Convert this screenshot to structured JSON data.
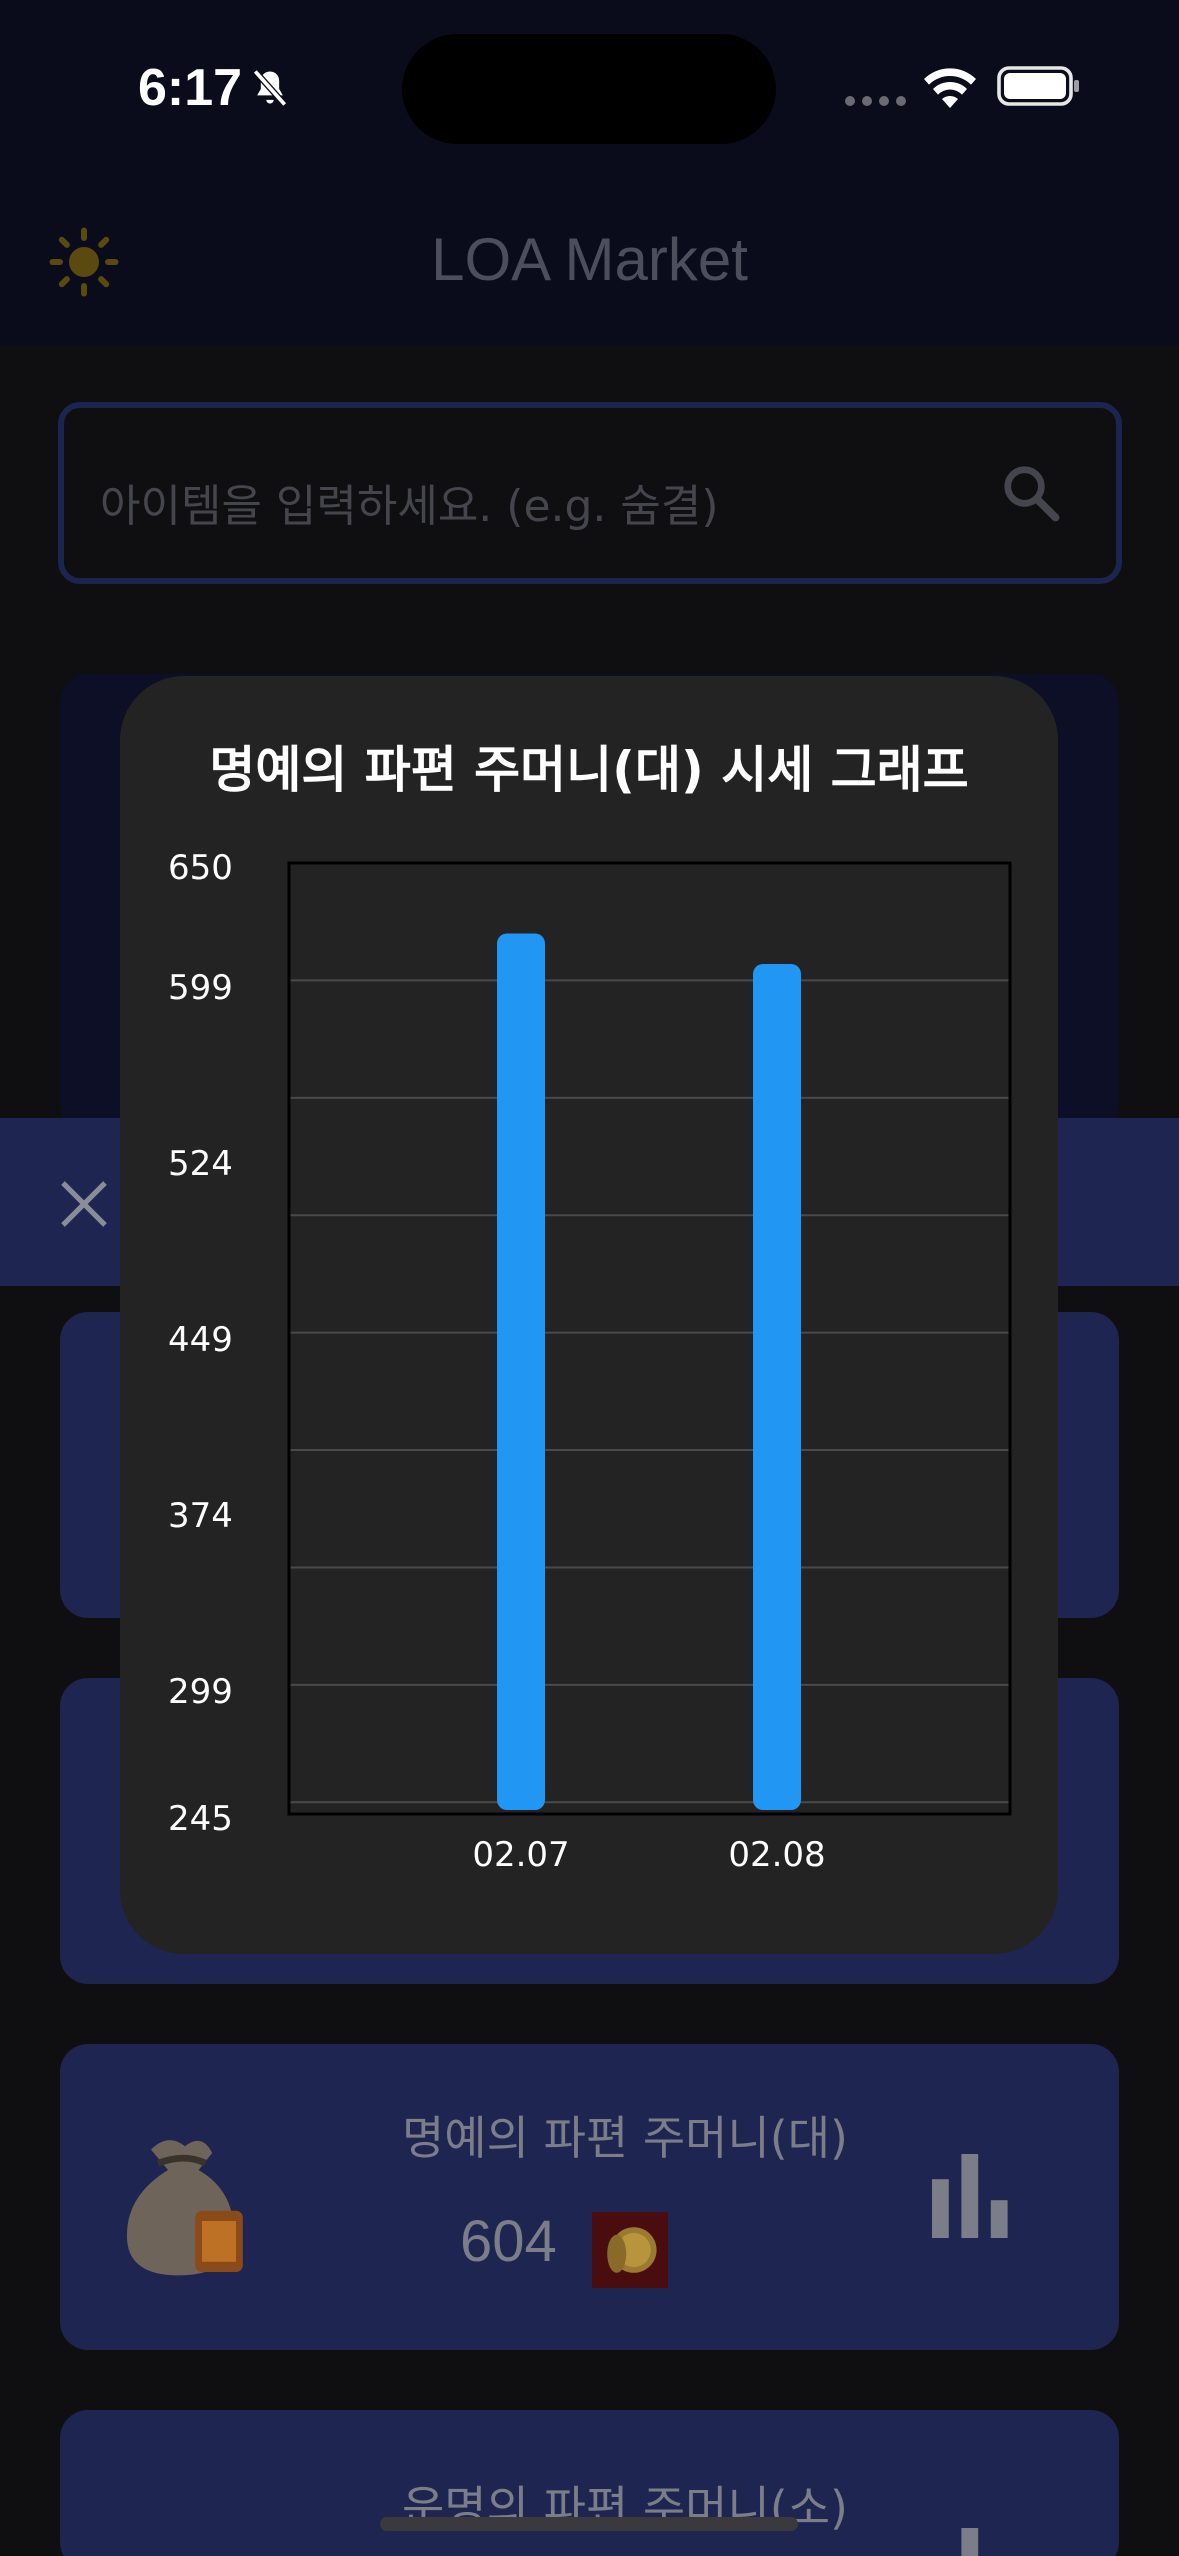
{
  "status_bar": {
    "time": "6:17"
  },
  "app": {
    "title": "LOA Market"
  },
  "search": {
    "placeholder": "아이템을 입력하세요. (e.g. 숨결)"
  },
  "items": [
    {
      "name": "명예의 파편 주머니(대)",
      "price": "604"
    },
    {
      "name": "운명의 파편 주머니(소)"
    }
  ],
  "modal": {
    "title": "명예의 파편 주머니(대) 시세 그래프",
    "chart_data": {
      "type": "bar",
      "categories": [
        "02.07",
        "02.08"
      ],
      "values": [
        620,
        607
      ],
      "ylim": [
        245,
        650
      ],
      "y_ticks": [
        650,
        599,
        524,
        449,
        374,
        299,
        245
      ],
      "grid": true,
      "colors": {
        "bar": "#2196f3",
        "grid": "#4a4a4a",
        "background": "#232323"
      }
    }
  }
}
